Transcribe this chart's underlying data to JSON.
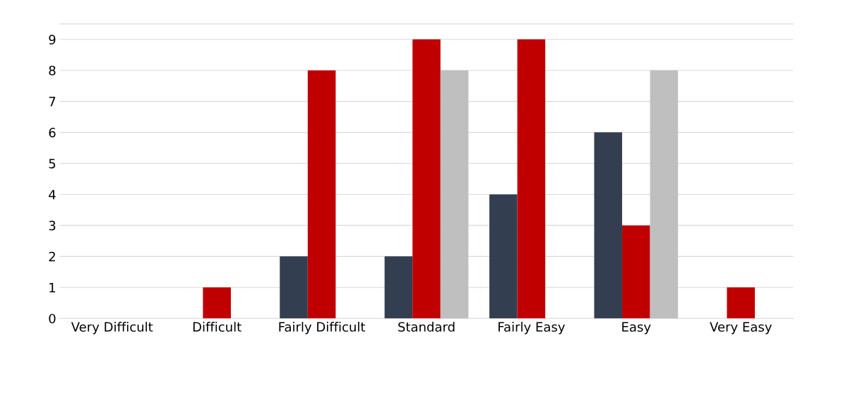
{
  "chart_data": {
    "type": "bar",
    "categories": [
      "Very Difficult",
      "Difficult",
      "Fairly Difficult",
      "Standard",
      "Fairly Easy",
      "Easy",
      "Very Easy"
    ],
    "series": [
      {
        "color": "#333f50",
        "values": [
          0,
          0,
          2,
          2,
          4,
          6,
          0
        ]
      },
      {
        "color": "#c00000",
        "values": [
          0,
          1,
          8,
          9,
          9,
          3,
          1
        ]
      },
      {
        "color": "#bfbfbf",
        "values": [
          0,
          0,
          0,
          8,
          0,
          8,
          0
        ]
      }
    ],
    "ylim": [
      0,
      9.5
    ],
    "yticks": [
      0,
      1,
      2,
      3,
      4,
      5,
      6,
      7,
      8,
      9
    ],
    "grid": "y"
  }
}
